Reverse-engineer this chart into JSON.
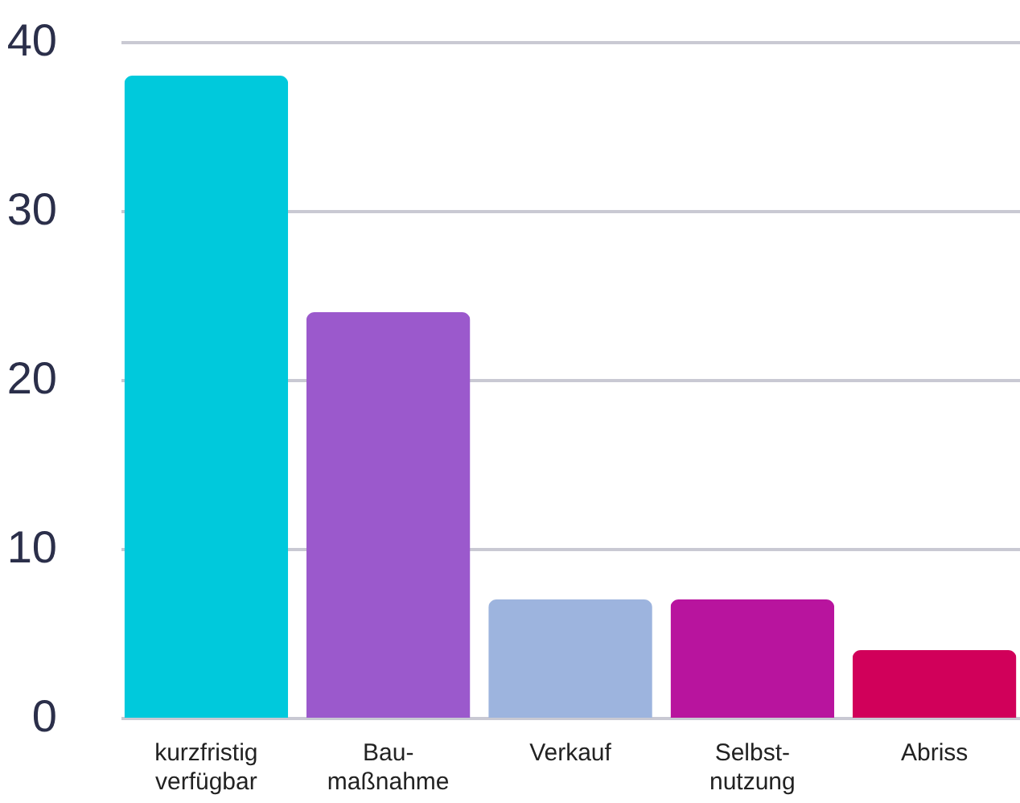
{
  "chart_data": {
    "type": "bar",
    "categories": [
      "kurzfristig verfügbar",
      "Bau-maßnahme",
      "Verkauf",
      "Selbst-nutzung",
      "Abriss"
    ],
    "values": [
      38,
      24,
      7,
      7,
      4
    ],
    "colors": [
      "#00c9dc",
      "#9b59cc",
      "#9db4de",
      "#b8149e",
      "#d1005a"
    ],
    "ylim": [
      0,
      40
    ],
    "yticks": [
      0,
      10,
      20,
      30,
      40
    ],
    "grid": "y"
  }
}
